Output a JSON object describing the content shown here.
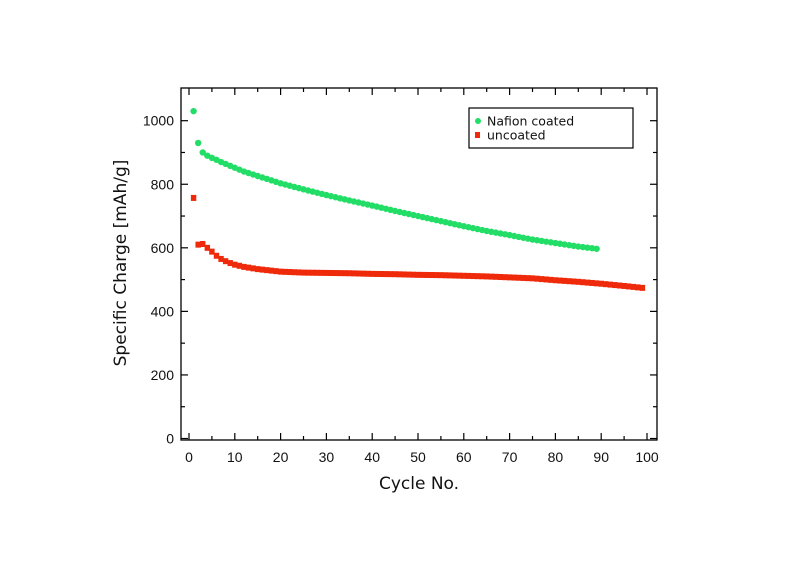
{
  "chart_data": {
    "type": "scatter",
    "title": "",
    "xlabel": "Cycle No.",
    "ylabel": "Specific Charge [mAh/g]",
    "xlim": [
      -2,
      102
    ],
    "ylim": [
      0,
      1100
    ],
    "xticks": [
      0,
      10,
      20,
      30,
      40,
      50,
      60,
      70,
      80,
      90,
      100
    ],
    "yticks": [
      0,
      200,
      400,
      600,
      800,
      1000
    ],
    "grid": false,
    "legend_position": "upper right",
    "series": [
      {
        "name": "Nafion coated",
        "color": "#22dd66",
        "marker": "circle",
        "x": [
          1,
          2,
          3,
          4,
          5,
          6,
          7,
          8,
          9,
          10,
          12,
          15,
          20,
          25,
          30,
          35,
          40,
          45,
          50,
          55,
          60,
          65,
          70,
          75,
          80,
          85,
          89
        ],
        "values": [
          1030,
          930,
          900,
          890,
          883,
          877,
          870,
          864,
          858,
          852,
          840,
          826,
          803,
          784,
          766,
          749,
          733,
          716,
          700,
          684,
          668,
          653,
          640,
          626,
          615,
          604,
          597
        ]
      },
      {
        "name": "uncoated",
        "color": "#ee2a0a",
        "marker": "square",
        "x": [
          1,
          2,
          3,
          4,
          5,
          6,
          7,
          8,
          9,
          10,
          12,
          15,
          20,
          25,
          30,
          35,
          40,
          45,
          50,
          55,
          60,
          65,
          70,
          75,
          80,
          85,
          90,
          95,
          99
        ],
        "values": [
          757,
          610,
          612,
          600,
          588,
          575,
          565,
          558,
          552,
          547,
          540,
          533,
          525,
          522,
          521,
          520,
          518,
          517,
          515,
          514,
          512,
          510,
          507,
          504,
          498,
          493,
          487,
          480,
          474
        ]
      }
    ]
  }
}
